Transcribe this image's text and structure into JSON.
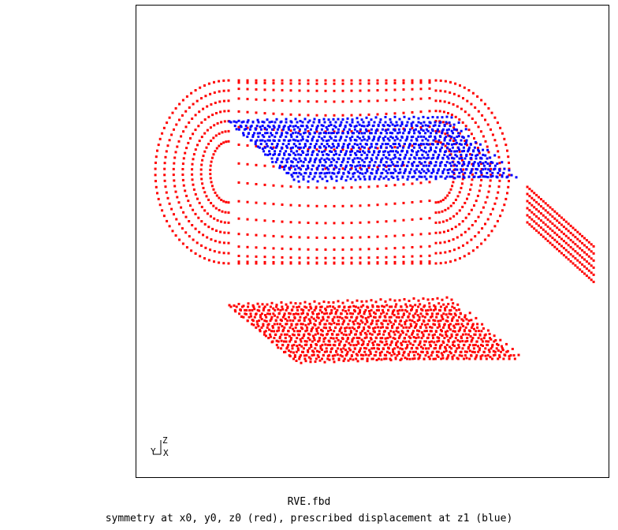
{
  "viewer": {
    "file_name": "RVE.fbd",
    "subtitle": "symmetry at x0, y0, z0 (red), prescribed displacement at z1 (blue)",
    "colors": {
      "background": "#ffffff",
      "frame": "#000000",
      "red_nodes": "#ff0000",
      "blue_nodes": "#0000ff"
    }
  },
  "axis_triad": {
    "z_label": "Z",
    "y_label": "Y",
    "x_label": "X"
  }
}
